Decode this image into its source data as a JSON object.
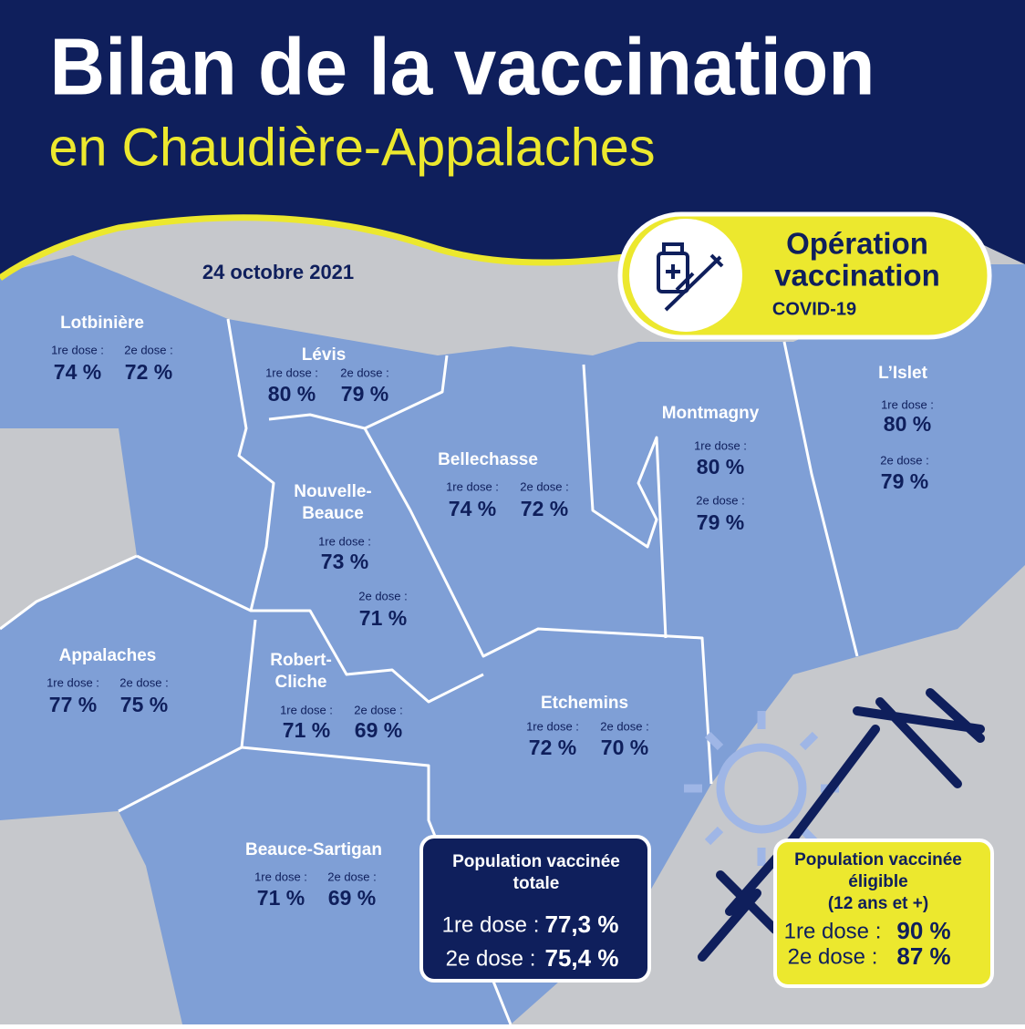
{
  "header": {
    "title": "Bilan de la vaccination",
    "subtitle": "en Chaudière-Appalaches"
  },
  "date": "24 octobre 2021",
  "badge": {
    "line1": "Opération",
    "line2": "vaccination",
    "line3": "COVID-19"
  },
  "regions": [
    {
      "name": [
        "Lotbinière"
      ],
      "dose1_label": "1re dose :",
      "dose1": "74 %",
      "dose2_label": "2e dose :",
      "dose2": "72 %"
    },
    {
      "name": [
        "Lévis"
      ],
      "dose1_label": "1re dose :",
      "dose1": "80 %",
      "dose2_label": "2e dose :",
      "dose2": "79 %"
    },
    {
      "name": [
        "Nouvelle-",
        "Beauce"
      ],
      "dose1_label": "1re dose :",
      "dose1": "73 %",
      "dose2_label": "2e dose :",
      "dose2": "71 %"
    },
    {
      "name": [
        "Bellechasse"
      ],
      "dose1_label": "1re dose :",
      "dose1": "74 %",
      "dose2_label": "2e dose :",
      "dose2": "72 %"
    },
    {
      "name": [
        "Montmagny"
      ],
      "dose1_label": "1re dose :",
      "dose1": "80 %",
      "dose2_label": "2e dose :",
      "dose2": "79 %"
    },
    {
      "name": [
        "L’Islet"
      ],
      "dose1_label": "1re dose :",
      "dose1": "80 %",
      "dose2_label": "2e dose :",
      "dose2": "79 %"
    },
    {
      "name": [
        "Appalaches"
      ],
      "dose1_label": "1re dose :",
      "dose1": "77 %",
      "dose2_label": "2e dose :",
      "dose2": "75 %"
    },
    {
      "name": [
        "Robert-",
        "Cliche"
      ],
      "dose1_label": "1re dose :",
      "dose1": "71 %",
      "dose2_label": "2e dose :",
      "dose2": "69 %"
    },
    {
      "name": [
        "Etchemins"
      ],
      "dose1_label": "1re dose :",
      "dose1": "72 %",
      "dose2_label": "2e dose :",
      "dose2": "70 %"
    },
    {
      "name": [
        "Beauce-Sartigan"
      ],
      "dose1_label": "1re dose :",
      "dose1": "71 %",
      "dose2_label": "2e dose :",
      "dose2": "69 %"
    }
  ],
  "total": {
    "title": [
      "Population vaccinée",
      "totale"
    ],
    "dose1_label": "1re dose :",
    "dose1": "77,3 %",
    "dose2_label": "2e dose :",
    "dose2": "75,4 %"
  },
  "eligible": {
    "title": [
      "Population vaccinée",
      "éligible",
      "(12 ans et +)"
    ],
    "dose1_label": "1re dose :",
    "dose1": "90 %",
    "dose2_label": "2e dose :",
    "dose2": "87 %"
  }
}
